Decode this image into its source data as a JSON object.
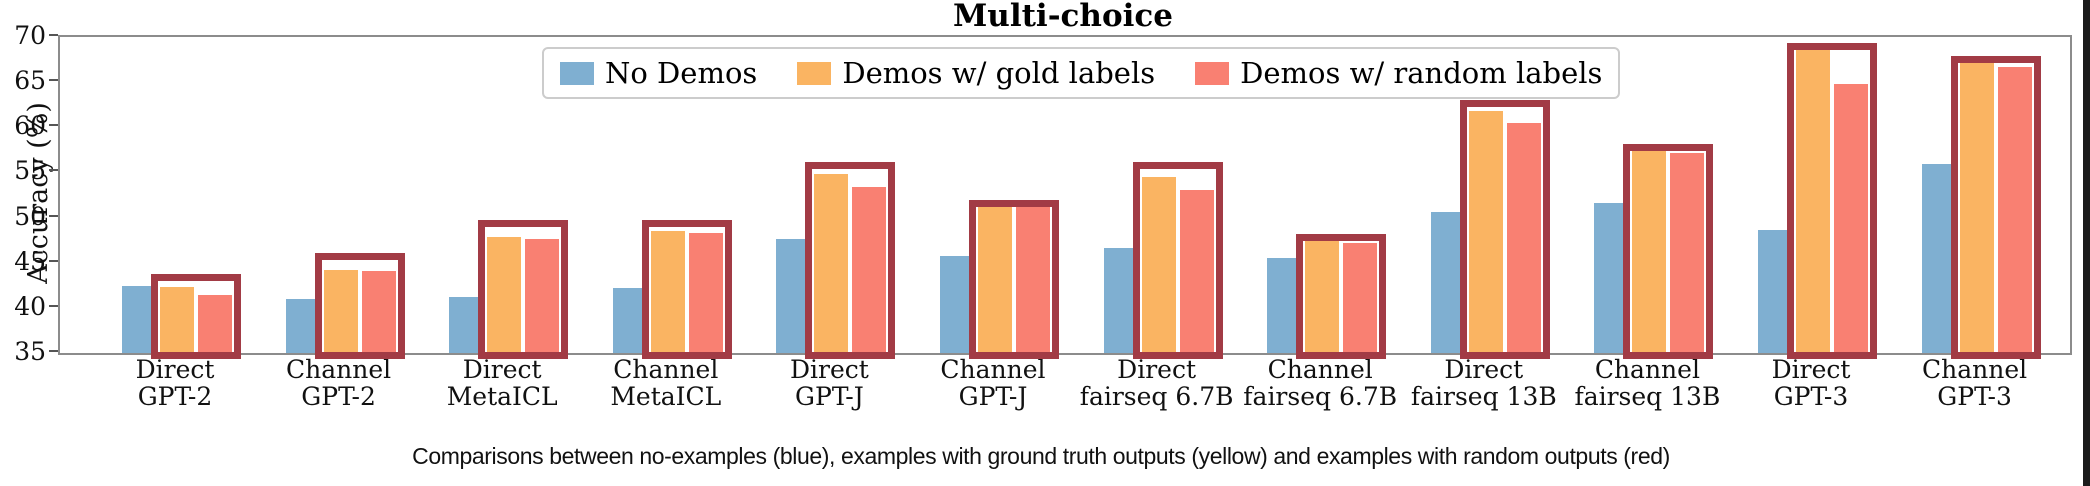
{
  "title": "Multi-choice",
  "caption": "Comparisons between no-examples (blue), examples with ground truth outputs (yellow) and examples with random outputs (red)",
  "chart_data": {
    "type": "bar",
    "title": "Multi-choice",
    "xlabel": "",
    "ylabel": "Accuracy (%)",
    "ylim": [
      35,
      70
    ],
    "yticks": [
      35,
      40,
      45,
      50,
      55,
      60,
      65,
      70
    ],
    "grid": false,
    "legend_position": "upper-center-inside",
    "categories": [
      [
        "Direct",
        "GPT-2"
      ],
      [
        "Channel",
        "GPT-2"
      ],
      [
        "Direct",
        "MetaICL"
      ],
      [
        "Channel",
        "MetaICL"
      ],
      [
        "Direct",
        "GPT-J"
      ],
      [
        "Channel",
        "GPT-J"
      ],
      [
        "Direct",
        "fairseq 6.7B"
      ],
      [
        "Channel",
        "fairseq 6.7B"
      ],
      [
        "Direct",
        "fairseq 13B"
      ],
      [
        "Channel",
        "fairseq 13B"
      ],
      [
        "Direct",
        "GPT-3"
      ],
      [
        "Channel",
        "GPT-3"
      ]
    ],
    "series": [
      {
        "key": "no-demos",
        "name": "No Demos",
        "color": "#7fafd1",
        "values": [
          42.6,
          41.2,
          41.4,
          42.4,
          47.8,
          46.0,
          46.8,
          45.7,
          50.8,
          51.8,
          48.8,
          56.1
        ]
      },
      {
        "key": "gold",
        "name": "Demos w/ gold labels",
        "color": "#fab462",
        "values": [
          42.5,
          44.4,
          48.1,
          48.7,
          55.1,
          51.9,
          54.7,
          48.0,
          62.0,
          57.8,
          68.9,
          67.4
        ]
      },
      {
        "key": "random",
        "name": "Demos w/ random labels",
        "color": "#f98072",
        "values": [
          41.6,
          44.3,
          47.8,
          48.5,
          53.6,
          51.7,
          53.3,
          47.4,
          60.7,
          57.4,
          65.0,
          66.9
        ]
      }
    ],
    "highlight_boxes": {
      "note": "dark red rectangles framing the gold+random bars of each group",
      "color": "#a23b45",
      "tops": [
        43.7,
        46.1,
        49.7,
        49.7,
        56.2,
        52.0,
        56.2,
        48.2,
        63.0,
        58.1,
        69.3,
        67.9
      ]
    }
  }
}
